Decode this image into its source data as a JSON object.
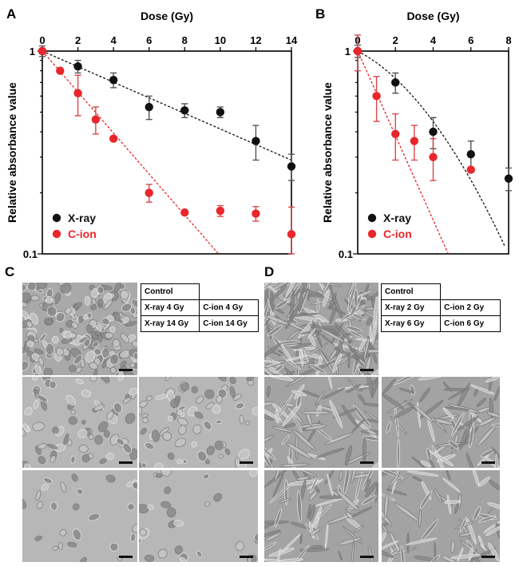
{
  "panel_letters": {
    "a": "A",
    "b": "B",
    "c": "C",
    "d": "D"
  },
  "chart_data": [
    {
      "panel": "A",
      "type": "scatter",
      "xlabel": "Dose (Gy)",
      "ylabel": "Relative absorbance value",
      "xlim": [
        0,
        14
      ],
      "ylim": [
        0.1,
        1
      ],
      "yscale": "log",
      "xticks": [
        0,
        2,
        4,
        6,
        8,
        10,
        12,
        14
      ],
      "ytick_labels": [
        "1",
        "0.1"
      ],
      "x_axis_position": "top",
      "legend_position": "bottom-left",
      "series": [
        {
          "name": "X-ray",
          "color": "#111111",
          "points": [
            {
              "x": 0,
              "y": 1.0,
              "err": 0.06
            },
            {
              "x": 2,
              "y": 0.84,
              "err": 0.06
            },
            {
              "x": 4,
              "y": 0.72,
              "err": 0.06
            },
            {
              "x": 6,
              "y": 0.53,
              "err": 0.07
            },
            {
              "x": 8,
              "y": 0.51,
              "err": 0.04
            },
            {
              "x": 10,
              "y": 0.5,
              "err": 0.03
            },
            {
              "x": 12,
              "y": 0.36,
              "err": 0.07
            },
            {
              "x": 14,
              "y": 0.27,
              "err": 0.04
            }
          ],
          "fit": {
            "kind": "exponential",
            "x": [
              0,
              14
            ],
            "y": [
              1.0,
              0.29
            ],
            "style": "dashed"
          }
        },
        {
          "name": "C-ion",
          "color": "#e8262b",
          "points": [
            {
              "x": 0,
              "y": 1.0,
              "err": 0.0
            },
            {
              "x": 1,
              "y": 0.8,
              "err": 0.0
            },
            {
              "x": 2,
              "y": 0.62,
              "err": 0.14
            },
            {
              "x": 3,
              "y": 0.46,
              "err": 0.07
            },
            {
              "x": 4,
              "y": 0.37,
              "err": 0.0
            },
            {
              "x": 6,
              "y": 0.2,
              "err": 0.02
            },
            {
              "x": 8,
              "y": 0.16,
              "err": 0.0
            },
            {
              "x": 10,
              "y": 0.163,
              "err": 0.01
            },
            {
              "x": 12,
              "y": 0.158,
              "err": 0.013
            },
            {
              "x": 14,
              "y": 0.125,
              "err": 0.045
            }
          ],
          "fit": {
            "kind": "exponential",
            "x": [
              0,
              9.9
            ],
            "y": [
              1.0,
              0.1
            ],
            "style": "dashed"
          }
        }
      ]
    },
    {
      "panel": "B",
      "type": "scatter",
      "xlabel": "Dose (Gy)",
      "ylabel": "Relative absorbance value",
      "xlim": [
        0,
        8
      ],
      "ylim": [
        0.1,
        1
      ],
      "yscale": "log",
      "xticks": [
        0,
        2,
        4,
        6,
        8
      ],
      "ytick_labels": [
        "1",
        "0.1"
      ],
      "x_axis_position": "top",
      "legend_position": "bottom-left",
      "series": [
        {
          "name": "X-ray",
          "color": "#111111",
          "points": [
            {
              "x": 0,
              "y": 1.0,
              "err": 0.07
            },
            {
              "x": 2,
              "y": 0.7,
              "err": 0.08
            },
            {
              "x": 4,
              "y": 0.4,
              "err": 0.07
            },
            {
              "x": 6,
              "y": 0.31,
              "err": 0.05
            },
            {
              "x": 8,
              "y": 0.235,
              "err": 0.03
            }
          ],
          "fit": {
            "kind": "linear-quadratic",
            "alpha": 0.111,
            "beta": 0.0222,
            "x": [
              0,
              7.8
            ],
            "style": "dashed"
          }
        },
        {
          "name": "C-ion",
          "color": "#e8262b",
          "points": [
            {
              "x": 0,
              "y": 1.0,
              "err": 0.2
            },
            {
              "x": 1,
              "y": 0.6,
              "err": 0.15
            },
            {
              "x": 2,
              "y": 0.39,
              "err": 0.1
            },
            {
              "x": 3,
              "y": 0.36,
              "err": 0.07
            },
            {
              "x": 4,
              "y": 0.3,
              "err": 0.07
            },
            {
              "x": 6,
              "y": 0.26,
              "err": 0.0
            }
          ],
          "fit": {
            "kind": "exponential",
            "x": [
              0,
              4.8
            ],
            "y": [
              1.0,
              0.1
            ],
            "style": "dashed"
          }
        }
      ]
    }
  ],
  "panel_c": {
    "table_rows": [
      [
        "Control",
        ""
      ],
      [
        "X-ray 4 Gy",
        "C-ion 4 Gy"
      ],
      [
        "X-ray 14 Gy",
        "C-ion 14 Gy"
      ]
    ]
  },
  "panel_d": {
    "table_rows": [
      [
        "Control",
        ""
      ],
      [
        "X-ray 2 Gy",
        "C-ion 2 Gy"
      ],
      [
        "X-ray 6 Gy",
        "C-ion 6 Gy"
      ]
    ]
  }
}
